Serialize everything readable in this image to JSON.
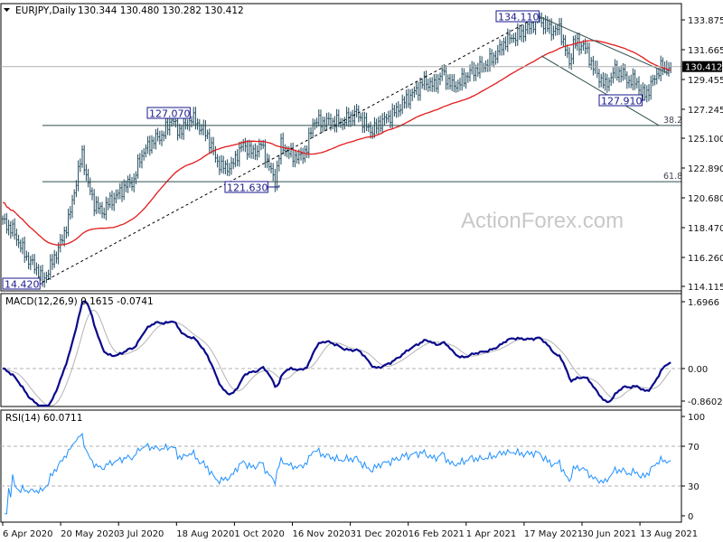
{
  "header": {
    "symbol_timeframe": "EURJPY,Daily",
    "ohlc": "130.344 130.480 130.282 130.412",
    "menu_icon": "triangle-down-icon"
  },
  "watermark": "ActionForex.com",
  "colors": {
    "bars": "#1f4a5c",
    "ma": "#e31a1a",
    "macd": "#0a0a8c",
    "signal": "#b4b4b4",
    "rsi": "#1e90ff",
    "label": "#1a1a8c",
    "current": "#000000"
  },
  "chart_data": [
    {
      "type": "line",
      "title": "EURJPY,Daily",
      "subtype": "ohlc-bars",
      "ylim": [
        114.115,
        134.3
      ],
      "y_ticks": [
        "133.875",
        "131.665",
        "129.455",
        "127.245",
        "125.100",
        "122.890",
        "120.680",
        "118.470",
        "116.260",
        "114.115"
      ],
      "y_tick_values": [
        133.875,
        131.665,
        129.455,
        127.245,
        125.1,
        122.89,
        120.68,
        118.47,
        116.26,
        114.115
      ],
      "current_price": "130.412",
      "current_value": 130.412,
      "x_ticks": [
        "6 Apr 2020",
        "20 May 2020",
        "3 Jul 2020",
        "18 Aug 2020",
        "1 Oct 2020",
        "16 Nov 2020",
        "31 Dec 2020",
        "16 Feb 2021",
        "1 Apr 2021",
        "17 May 2021",
        "30 Jun 2021",
        "13 Aug 2021"
      ],
      "x_tick_bars": [
        0,
        31,
        62,
        95,
        127,
        160,
        192,
        225,
        257,
        290,
        321,
        352
      ],
      "total_bars": 337,
      "close_waypoints": [
        [
          0,
          118.94
        ],
        [
          5,
          118.27
        ],
        [
          12,
          116.26
        ],
        [
          18,
          115.25
        ],
        [
          20,
          114.45
        ],
        [
          24,
          115.59
        ],
        [
          27,
          116.6
        ],
        [
          30,
          117.6
        ],
        [
          34,
          119.61
        ],
        [
          37,
          121.95
        ],
        [
          40,
          123.96
        ],
        [
          43,
          121.62
        ],
        [
          46,
          120.28
        ],
        [
          50,
          119.61
        ],
        [
          53,
          120.28
        ],
        [
          58,
          120.95
        ],
        [
          62,
          121.62
        ],
        [
          66,
          121.95
        ],
        [
          69,
          123.63
        ],
        [
          72,
          124.3
        ],
        [
          76,
          124.97
        ],
        [
          80,
          125.3
        ],
        [
          83,
          125.97
        ],
        [
          85,
          126.64
        ],
        [
          88,
          125.64
        ],
        [
          92,
          125.97
        ],
        [
          95,
          126.64
        ],
        [
          99,
          125.97
        ],
        [
          103,
          125.3
        ],
        [
          107,
          123.63
        ],
        [
          110,
          122.96
        ],
        [
          115,
          122.96
        ],
        [
          118,
          123.96
        ],
        [
          121,
          124.63
        ],
        [
          126,
          123.96
        ],
        [
          130,
          124.63
        ],
        [
          133,
          123.43
        ],
        [
          135,
          122.62
        ],
        [
          137,
          121.95
        ],
        [
          140,
          124.63
        ],
        [
          144,
          123.96
        ],
        [
          149,
          123.63
        ],
        [
          153,
          124.3
        ],
        [
          156,
          126.31
        ],
        [
          162,
          126.31
        ],
        [
          169,
          126.31
        ],
        [
          171,
          126.31
        ],
        [
          178,
          126.98
        ],
        [
          183,
          125.97
        ],
        [
          186,
          125.64
        ],
        [
          190,
          126.31
        ],
        [
          194,
          126.64
        ],
        [
          199,
          127.31
        ],
        [
          203,
          127.98
        ],
        [
          208,
          128.65
        ],
        [
          212,
          129.32
        ],
        [
          217,
          128.98
        ],
        [
          221,
          129.99
        ],
        [
          226,
          128.98
        ],
        [
          230,
          129.19
        ],
        [
          235,
          129.99
        ],
        [
          240,
          130.32
        ],
        [
          244,
          130.66
        ],
        [
          249,
          131.46
        ],
        [
          253,
          132.33
        ],
        [
          260,
          132.8
        ],
        [
          265,
          133.34
        ],
        [
          269,
          134.01
        ],
        [
          274,
          133.34
        ],
        [
          278,
          133.0
        ],
        [
          280,
          133.34
        ],
        [
          283,
          131.66
        ],
        [
          285,
          130.66
        ],
        [
          287,
          132.13
        ],
        [
          292,
          132.0
        ],
        [
          294,
          131.46
        ],
        [
          297,
          130.32
        ],
        [
          300,
          129.65
        ],
        [
          303,
          128.98
        ],
        [
          306,
          129.65
        ],
        [
          308,
          130.12
        ],
        [
          312,
          129.86
        ],
        [
          315,
          129.32
        ],
        [
          319,
          129.32
        ],
        [
          321,
          128.32
        ],
        [
          325,
          128.65
        ],
        [
          328,
          129.65
        ],
        [
          331,
          130.32
        ],
        [
          336,
          130.41
        ]
      ],
      "ma_period": 55,
      "annotations": [
        {
          "text": "134.110",
          "bar": 269,
          "price": 134.11
        },
        {
          "text": "127.910",
          "bar": 323,
          "price": 127.91
        },
        {
          "text": "127.070",
          "bar": 92,
          "price": 127.07
        },
        {
          "text": "121.630",
          "bar": 139,
          "price": 121.63
        },
        {
          "text": "14.420",
          "bar": 20,
          "price": 114.42
        }
      ],
      "fib_levels": [
        {
          "label": "38.2",
          "price": 126.05
        },
        {
          "label": "61.8",
          "price": 121.88
        }
      ],
      "trend_lines": [
        {
          "style": "dashed",
          "from": [
            20,
            114.42
          ],
          "to": [
            269,
            134.11
          ]
        },
        {
          "style": "solid",
          "from": [
            270,
            134.11
          ],
          "to": [
            335,
            129.9
          ]
        },
        {
          "style": "solid",
          "from": [
            271,
            131.2
          ],
          "to": [
            330,
            126.05
          ]
        }
      ]
    },
    {
      "type": "line",
      "title": "MACD(12,26,9) 0.1615 -0.0741",
      "series": [
        {
          "name": "MACD main",
          "last": 0.1615
        },
        {
          "name": "Signal",
          "last": -0.0741
        }
      ],
      "ylim": [
        -0.8602,
        1.6966
      ],
      "y_ticks": [
        "1.6966",
        "0.00",
        "-0.8602"
      ],
      "y_tick_values": [
        1.6966,
        0,
        -0.8602
      ]
    },
    {
      "type": "line",
      "title": "RSI(14) 60.0711",
      "series": [
        {
          "name": "RSI",
          "period": 14,
          "last": 60.0711
        }
      ],
      "ylim": [
        0,
        100
      ],
      "y_ticks": [
        "100",
        "70",
        "30",
        "0"
      ],
      "y_tick_values": [
        100,
        70,
        30,
        0
      ]
    }
  ]
}
